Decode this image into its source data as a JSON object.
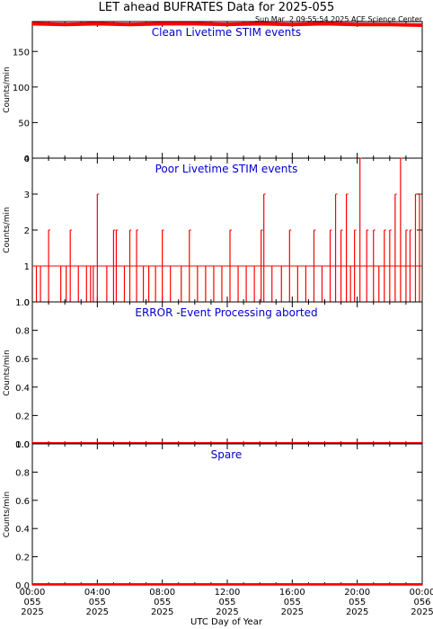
{
  "figure": {
    "title": "LET ahead BUFRATES Data for 2025-055",
    "timestamp": "Sun Mar  2 09:55:54 2025 ACE Science Center",
    "xlabel": "UTC Day of Year"
  },
  "colors": {
    "data": "#ff0000",
    "panel_title": "#0000cc",
    "axes": "#000000",
    "background": "#ffffff"
  },
  "chart_data": [
    {
      "type": "line",
      "title": "Clean Livetime STIM events",
      "ylabel": "Counts/min",
      "xlim": [
        "00:00",
        "24:00"
      ],
      "ylim": [
        0,
        192
      ],
      "yticks": [
        0,
        50,
        100,
        150
      ],
      "ytick_labels": [
        "0",
        "50",
        "100",
        "150"
      ],
      "x_tick_labels": [
        "00:00",
        "04:00",
        "08:00",
        "12:00",
        "16:00",
        "20:00",
        "00:00"
      ],
      "x_tick_days": [
        "055",
        "055",
        "055",
        "055",
        "055",
        "055",
        "056"
      ],
      "x_tick_years": [
        "2025",
        "2025",
        "2025",
        "2025",
        "2025",
        "2025",
        "2025"
      ],
      "series": [
        {
          "x": [
            "00:00",
            "02:00",
            "04:00",
            "06:00",
            "08:00",
            "10:00",
            "12:00",
            "14:00",
            "16:00",
            "18:00",
            "20:00",
            "22:00",
            "24:00"
          ],
          "values": [
            189,
            188,
            189,
            188,
            189,
            189,
            188,
            189,
            188,
            189,
            188,
            188,
            187
          ]
        }
      ]
    },
    {
      "type": "line",
      "title": "Poor Livetime STIM events",
      "ylabel": "Counts/min",
      "xlim": [
        "00:00",
        "24:00"
      ],
      "ylim": [
        0,
        4
      ],
      "yticks": [
        0,
        1,
        2,
        3,
        4
      ],
      "ytick_labels": [
        "0",
        "1",
        "2",
        "3",
        "4"
      ],
      "x_tick_labels": [
        "00:00",
        "04:00",
        "08:00",
        "12:00",
        "16:00",
        "20:00",
        "00:00"
      ],
      "x_tick_days": [
        "055",
        "055",
        "055",
        "055",
        "055",
        "055",
        "056"
      ],
      "x_tick_years": [
        "2025",
        "2025",
        "2025",
        "2025",
        "2025",
        "2025",
        "2025"
      ],
      "series": [
        {
          "x": [
            "00:15",
            "00:30",
            "01:00",
            "01:45",
            "02:05",
            "02:20",
            "02:50",
            "03:20",
            "03:35",
            "03:45",
            "04:00",
            "04:35",
            "05:00",
            "05:10",
            "05:40",
            "06:00",
            "06:25",
            "06:50",
            "07:10",
            "07:35",
            "08:00",
            "08:30",
            "09:10",
            "09:40",
            "10:10",
            "10:40",
            "11:10",
            "11:40",
            "12:10",
            "12:40",
            "13:10",
            "13:40",
            "14:05",
            "14:15",
            "14:45",
            "15:20",
            "15:50",
            "16:20",
            "16:50",
            "17:20",
            "17:50",
            "18:20",
            "18:40",
            "19:00",
            "19:20",
            "19:35",
            "19:50",
            "20:10",
            "20:35",
            "21:00",
            "21:20",
            "21:40",
            "22:00",
            "22:20",
            "22:40",
            "23:00",
            "23:15",
            "23:35",
            "23:50"
          ],
          "values": [
            1,
            1,
            2,
            1,
            1,
            2,
            1,
            1,
            1,
            1,
            3,
            1,
            2,
            2,
            1,
            2,
            2,
            1,
            1,
            1,
            2,
            1,
            1,
            2,
            1,
            1,
            1,
            1,
            2,
            1,
            1,
            1,
            2,
            3,
            1,
            1,
            2,
            1,
            1,
            2,
            1,
            2,
            3,
            2,
            3,
            1,
            2,
            4,
            2,
            2,
            1,
            2,
            2,
            3,
            4,
            2,
            2,
            3,
            3
          ]
        }
      ]
    },
    {
      "type": "line",
      "title": "ERROR -Event Processing aborted",
      "ylabel": "Counts/min",
      "xlim": [
        "00:00",
        "24:00"
      ],
      "ylim": [
        0,
        1
      ],
      "yticks": [
        0,
        0.2,
        0.4,
        0.6,
        0.8,
        1.0
      ],
      "ytick_labels": [
        "0.0",
        "0.2",
        "0.4",
        "0.6",
        "0.8",
        "1.0"
      ],
      "x_tick_labels": [
        "00:00",
        "04:00",
        "08:00",
        "12:00",
        "16:00",
        "20:00",
        "00:00"
      ],
      "x_tick_days": [
        "055",
        "055",
        "055",
        "055",
        "055",
        "055",
        "056"
      ],
      "x_tick_years": [
        "2025",
        "2025",
        "2025",
        "2025",
        "2025",
        "2025",
        "2025"
      ],
      "series": [
        {
          "x": [
            "00:00",
            "24:00"
          ],
          "values": [
            0,
            0
          ]
        }
      ]
    },
    {
      "type": "line",
      "title": "Spare",
      "ylabel": "Counts/min",
      "xlim": [
        "00:00",
        "24:00"
      ],
      "ylim": [
        0,
        1
      ],
      "yticks": [
        0,
        0.2,
        0.4,
        0.6,
        0.8,
        1.0
      ],
      "ytick_labels": [
        "0.0",
        "0.2",
        "0.4",
        "0.6",
        "0.8",
        "1.0"
      ],
      "x_tick_labels": [
        "00:00",
        "04:00",
        "08:00",
        "12:00",
        "16:00",
        "20:00",
        "00:00"
      ],
      "x_tick_days": [
        "055",
        "055",
        "055",
        "055",
        "055",
        "055",
        "056"
      ],
      "x_tick_years": [
        "2025",
        "2025",
        "2025",
        "2025",
        "2025",
        "2025",
        "2025"
      ],
      "series": [
        {
          "x": [
            "00:00",
            "24:00"
          ],
          "values": [
            0,
            0
          ]
        }
      ]
    }
  ]
}
